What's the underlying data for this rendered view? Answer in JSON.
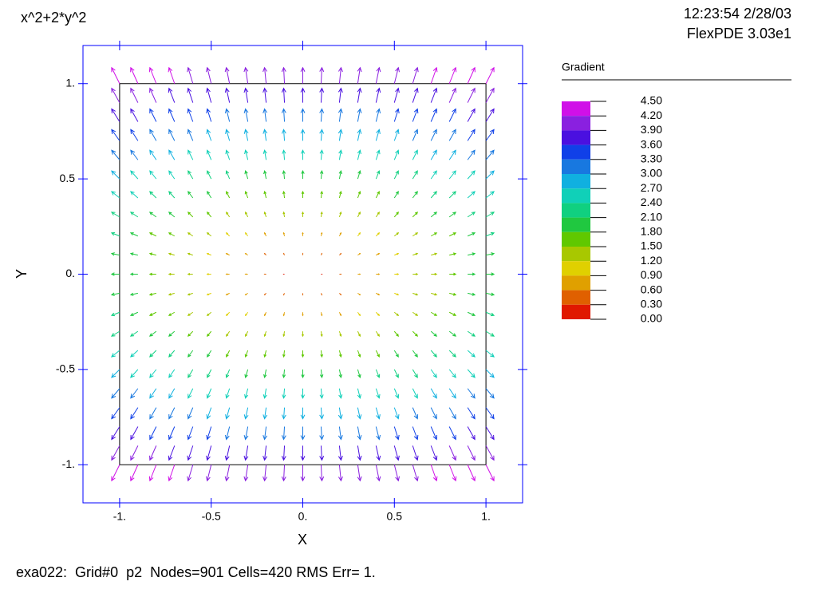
{
  "header": {
    "title": "x^2+2*y^2",
    "timestamp": "12:23:54 2/28/03",
    "software": "FlexPDE 3.03e1"
  },
  "chart_data": {
    "type": "quiver",
    "xlabel": "X",
    "ylabel": "Y",
    "xlim": [
      -1.2,
      1.2
    ],
    "ylim": [
      -1.2,
      1.2
    ],
    "xticks": [
      {
        "value": -1,
        "label": "-1."
      },
      -0.5,
      {
        "value": 0,
        "label": "0."
      },
      0.5,
      {
        "value": 1,
        "label": "1."
      }
    ],
    "yticks": [
      {
        "value": -1,
        "label": "-1."
      },
      -0.5,
      {
        "value": 0,
        "label": "0."
      },
      0.5,
      {
        "value": 1,
        "label": "1."
      }
    ],
    "domain": {
      "xlim": [
        -1,
        1
      ],
      "ylim": [
        -1,
        1
      ]
    },
    "x": [
      -1,
      -0.9,
      -0.8,
      -0.7,
      -0.6,
      -0.5,
      -0.4,
      -0.3,
      -0.2,
      -0.1,
      0,
      0.1,
      0.2,
      0.3,
      0.4,
      0.5,
      0.6,
      0.7,
      0.8,
      0.9,
      1
    ],
    "u": [
      -2,
      -1.8,
      -1.6,
      -1.4,
      -1.2,
      -1,
      -0.8,
      -0.6,
      -0.4,
      -0.2,
      0,
      0.2,
      0.4,
      0.6,
      0.8,
      1,
      1.2,
      1.4,
      1.6,
      1.8,
      2
    ],
    "y": [
      -1,
      -0.9,
      -0.8,
      -0.7,
      -0.6,
      -0.5,
      -0.4,
      -0.3,
      -0.2,
      -0.1,
      0,
      0.1,
      0.2,
      0.3,
      0.4,
      0.5,
      0.6,
      0.7,
      0.8,
      0.9,
      1
    ],
    "v": [
      -4,
      -3.6,
      -3.2,
      -2.8,
      -2.4,
      -2,
      -1.6,
      -1.2,
      -0.8,
      -0.4,
      0,
      0.4,
      0.8,
      1.2,
      1.6,
      2,
      2.4,
      2.8,
      3.2,
      3.6,
      4
    ],
    "legend": {
      "title": "Gradient",
      "levels": [
        {
          "value": 4.5,
          "label": "4.50"
        },
        {
          "value": 4.2,
          "label": "4.20"
        },
        {
          "value": 3.9,
          "label": "3.90"
        },
        {
          "value": 3.6,
          "label": "3.60"
        },
        {
          "value": 3.3,
          "label": "3.30"
        },
        {
          "value": 3.0,
          "label": "3.00"
        },
        {
          "value": 2.7,
          "label": "2.70"
        },
        {
          "value": 2.4,
          "label": "2.40"
        },
        {
          "value": 2.1,
          "label": "2.10"
        },
        {
          "value": 1.8,
          "label": "1.80"
        },
        {
          "value": 1.5,
          "label": "1.50"
        },
        {
          "value": 1.2,
          "label": "1.20"
        },
        {
          "value": 0.9,
          "label": "0.90"
        },
        {
          "value": 0.6,
          "label": "0.60"
        },
        {
          "value": 0.3,
          "label": "0.30"
        },
        {
          "value": 0,
          "label": "0.00"
        }
      ],
      "colors": [
        "#d010e8",
        "#8a20e0",
        "#4a10e0",
        "#1040e8",
        "#1878e0",
        "#10b0e0",
        "#10d0b8",
        "#10d080",
        "#20c840",
        "#60c800",
        "#a8c800",
        "#e0d000",
        "#e0a000",
        "#e06000",
        "#e01800"
      ]
    }
  },
  "footer": "exa022:  Grid#0  p2  Nodes=901 Cells=420 RMS Err= 1."
}
